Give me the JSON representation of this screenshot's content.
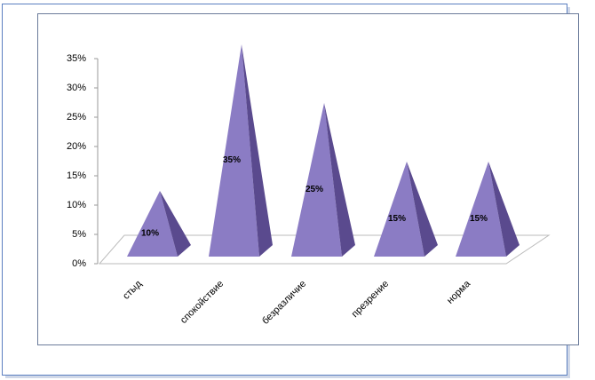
{
  "chart_data": {
    "type": "pyramid",
    "categories": [
      "стыд",
      "спокойствие",
      "безразличие",
      "презрение",
      "норма"
    ],
    "values": [
      10,
      35,
      25,
      15,
      15
    ],
    "value_labels": [
      "10%",
      "35%",
      "25%",
      "15%",
      "15%"
    ],
    "color": "#8b7cc4",
    "ylim": [
      0,
      35
    ],
    "yticks": [
      {
        "value": 0,
        "label": "0%"
      },
      {
        "value": 5,
        "label": "5%"
      },
      {
        "value": 10,
        "label": "10%"
      },
      {
        "value": 15,
        "label": "15%"
      },
      {
        "value": 20,
        "label": "20%"
      },
      {
        "value": 25,
        "label": "25%"
      },
      {
        "value": 30,
        "label": "30%"
      },
      {
        "value": 35,
        "label": "35%"
      }
    ]
  }
}
